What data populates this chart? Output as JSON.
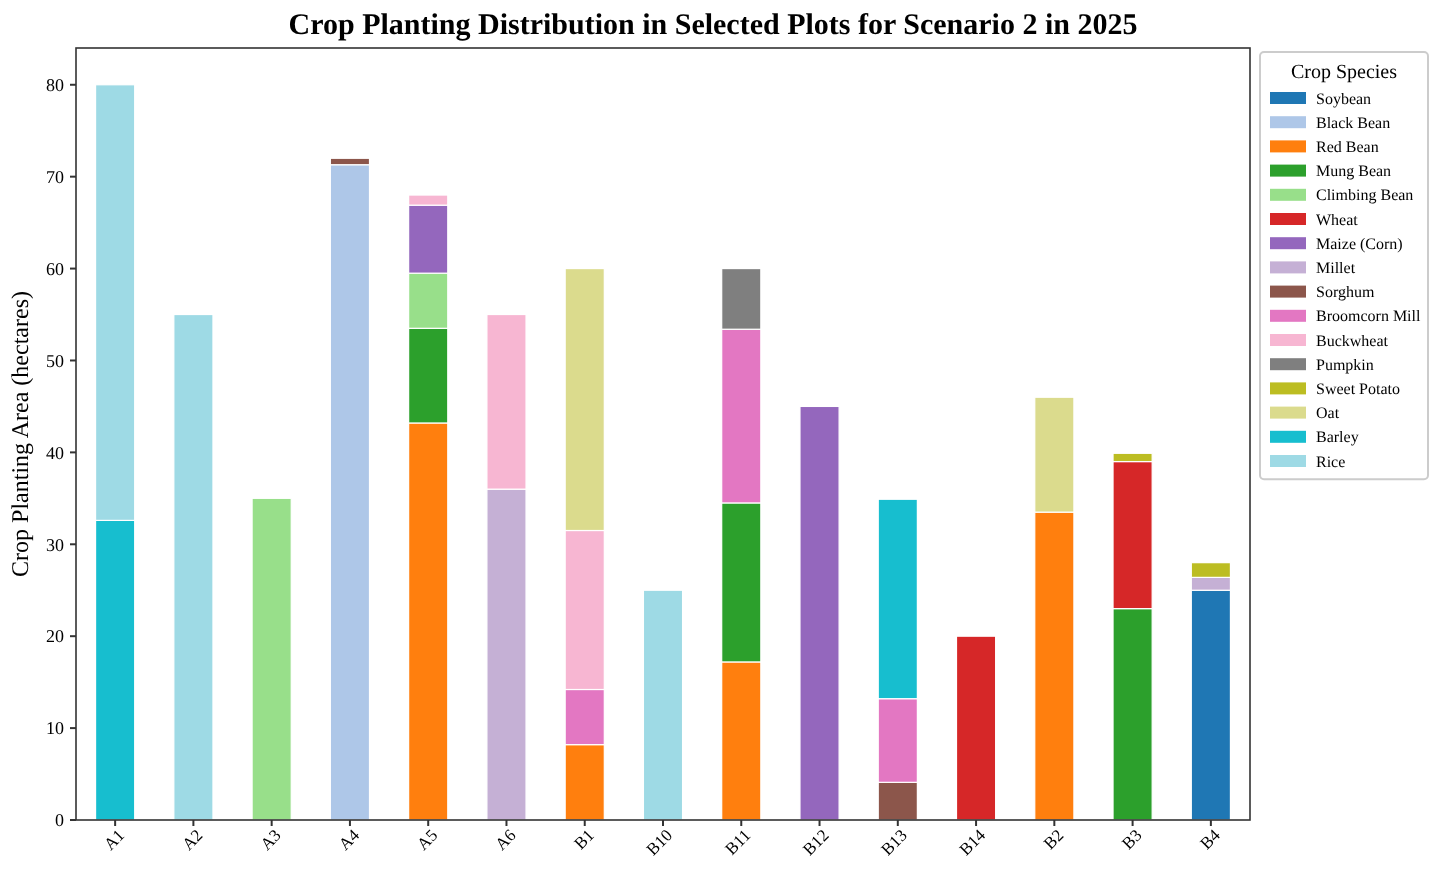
{
  "chart_data": {
    "type": "bar",
    "stacked": true,
    "title": "Crop Planting Distribution in Selected Plots for Scenario 2 in 2025",
    "ylabel": "Crop Planting Area (hectares)",
    "legend_title": "Crop Species",
    "legend": "right",
    "grid": false,
    "ylim": [
      0,
      84
    ],
    "yticks": [
      0,
      10,
      20,
      30,
      40,
      50,
      60,
      70,
      80
    ],
    "categories": [
      "A1",
      "A2",
      "A3",
      "A4",
      "A5",
      "A6",
      "B1",
      "B10",
      "B11",
      "B12",
      "B13",
      "B14",
      "B2",
      "B3",
      "B4"
    ],
    "series": [
      {
        "name": "Soybean",
        "color": "#1f77b4",
        "values": [
          null,
          null,
          null,
          null,
          null,
          null,
          null,
          null,
          null,
          null,
          null,
          null,
          null,
          null,
          25
        ]
      },
      {
        "name": "Black Bean",
        "color": "#aec7e8",
        "values": [
          null,
          null,
          null,
          71.3,
          null,
          null,
          null,
          null,
          null,
          null,
          null,
          null,
          null,
          null,
          null
        ]
      },
      {
        "name": "Red Bean",
        "color": "#ff7f0e",
        "values": [
          null,
          null,
          null,
          null,
          43.2,
          null,
          8.2,
          null,
          17.2,
          null,
          null,
          null,
          33.5,
          null,
          null
        ]
      },
      {
        "name": "Mung Bean",
        "color": "#2ca02c",
        "values": [
          null,
          null,
          null,
          null,
          10.3,
          null,
          null,
          null,
          17.3,
          null,
          null,
          null,
          null,
          23,
          null
        ]
      },
      {
        "name": "Climbing Bean",
        "color": "#98df8a",
        "values": [
          null,
          null,
          35,
          null,
          6,
          null,
          null,
          null,
          null,
          null,
          null,
          null,
          null,
          null,
          null
        ]
      },
      {
        "name": "Wheat",
        "color": "#d62728",
        "values": [
          null,
          null,
          null,
          null,
          null,
          null,
          null,
          null,
          null,
          null,
          null,
          20,
          null,
          16,
          null
        ]
      },
      {
        "name": "Maize (Corn)",
        "color": "#9467bd",
        "values": [
          null,
          null,
          null,
          null,
          7.4,
          null,
          null,
          null,
          null,
          45,
          null,
          null,
          null,
          null,
          null
        ]
      },
      {
        "name": "Millet",
        "color": "#c5b0d5",
        "values": [
          null,
          null,
          null,
          null,
          null,
          36,
          null,
          null,
          null,
          null,
          null,
          null,
          null,
          null,
          1.4
        ]
      },
      {
        "name": "Sorghum",
        "color": "#8c564b",
        "values": [
          null,
          null,
          null,
          0.7,
          null,
          null,
          null,
          null,
          null,
          null,
          4.1,
          null,
          null,
          null,
          null
        ]
      },
      {
        "name": "Broomcorn Mill",
        "color": "#e377c2",
        "values": [
          null,
          null,
          null,
          null,
          null,
          null,
          6,
          null,
          18.9,
          null,
          9.1,
          null,
          null,
          null,
          null
        ]
      },
      {
        "name": "Buckwheat",
        "color": "#f7b6d2",
        "values": [
          null,
          null,
          null,
          null,
          1.1,
          19,
          17.3,
          null,
          null,
          null,
          null,
          null,
          null,
          null,
          null
        ]
      },
      {
        "name": "Pumpkin",
        "color": "#7f7f7f",
        "values": [
          null,
          null,
          null,
          null,
          null,
          null,
          null,
          null,
          6.6,
          null,
          null,
          null,
          null,
          null,
          null
        ]
      },
      {
        "name": "Sweet Potato",
        "color": "#bcbd22",
        "values": [
          null,
          null,
          null,
          null,
          null,
          null,
          null,
          null,
          null,
          null,
          null,
          null,
          null,
          0.9,
          1.6
        ]
      },
      {
        "name": "Oat",
        "color": "#dbdb8d",
        "values": [
          null,
          null,
          null,
          null,
          null,
          null,
          28.5,
          null,
          null,
          null,
          null,
          null,
          12.5,
          null,
          null
        ]
      },
      {
        "name": "Barley",
        "color": "#17becf",
        "values": [
          32.6,
          null,
          null,
          null,
          null,
          null,
          null,
          null,
          null,
          null,
          21.7,
          null,
          null,
          null,
          null
        ]
      },
      {
        "name": "Rice",
        "color": "#9edae5",
        "values": [
          47.4,
          55,
          null,
          null,
          null,
          null,
          null,
          25,
          null,
          null,
          null,
          null,
          null,
          null,
          null
        ]
      }
    ]
  }
}
